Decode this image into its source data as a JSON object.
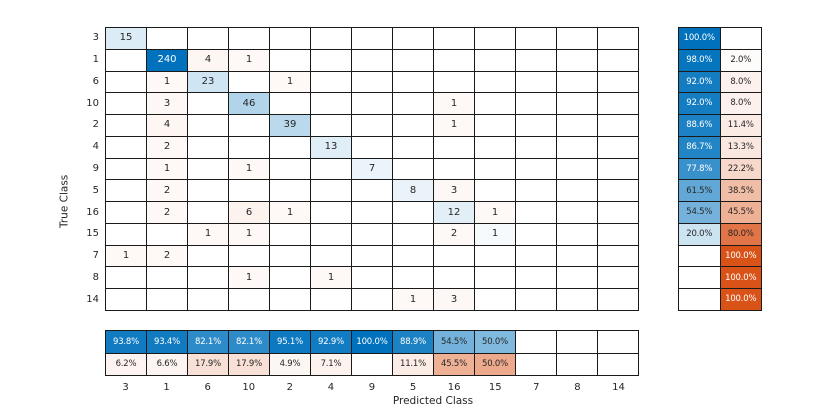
{
  "chart_data": {
    "type": "heatmap",
    "subtype": "confusion-matrix",
    "title": "",
    "xlabel": "Predicted Class",
    "ylabel": "True Class",
    "legend": "none",
    "grid": true,
    "classes": [
      "3",
      "1",
      "6",
      "10",
      "2",
      "4",
      "9",
      "5",
      "16",
      "15",
      "7",
      "8",
      "14"
    ],
    "matrix": [
      [
        15,
        0,
        0,
        0,
        0,
        0,
        0,
        0,
        0,
        0,
        0,
        0,
        0
      ],
      [
        0,
        240,
        4,
        1,
        0,
        0,
        0,
        0,
        0,
        0,
        0,
        0,
        0
      ],
      [
        0,
        1,
        23,
        0,
        1,
        0,
        0,
        0,
        0,
        0,
        0,
        0,
        0
      ],
      [
        0,
        3,
        0,
        46,
        0,
        0,
        0,
        0,
        1,
        0,
        0,
        0,
        0
      ],
      [
        0,
        4,
        0,
        0,
        39,
        0,
        0,
        0,
        1,
        0,
        0,
        0,
        0
      ],
      [
        0,
        2,
        0,
        0,
        0,
        13,
        0,
        0,
        0,
        0,
        0,
        0,
        0
      ],
      [
        0,
        1,
        0,
        1,
        0,
        0,
        7,
        0,
        0,
        0,
        0,
        0,
        0
      ],
      [
        0,
        2,
        0,
        0,
        0,
        0,
        0,
        8,
        3,
        0,
        0,
        0,
        0
      ],
      [
        0,
        2,
        0,
        6,
        1,
        0,
        0,
        0,
        12,
        1,
        0,
        0,
        0
      ],
      [
        0,
        0,
        1,
        1,
        0,
        0,
        0,
        0,
        2,
        1,
        0,
        0,
        0
      ],
      [
        1,
        2,
        0,
        0,
        0,
        0,
        0,
        0,
        0,
        0,
        0,
        0,
        0
      ],
      [
        0,
        0,
        0,
        1,
        0,
        1,
        0,
        0,
        0,
        0,
        0,
        0,
        0
      ],
      [
        0,
        0,
        0,
        0,
        0,
        0,
        0,
        1,
        3,
        0,
        0,
        0,
        0
      ]
    ],
    "row_summary": {
      "recall_pct": [
        100.0,
        98.0,
        92.0,
        92.0,
        88.6,
        86.7,
        77.8,
        61.5,
        54.5,
        20.0,
        null,
        null,
        null
      ],
      "false_negative_pct": [
        null,
        2.0,
        8.0,
        8.0,
        11.4,
        13.3,
        22.2,
        38.5,
        45.5,
        80.0,
        100.0,
        100.0,
        100.0
      ]
    },
    "col_summary": {
      "precision_pct": [
        93.8,
        93.4,
        82.1,
        82.1,
        95.1,
        92.9,
        100.0,
        88.9,
        54.5,
        50.0,
        null,
        null,
        null
      ],
      "false_discovery_pct": [
        6.2,
        6.6,
        17.9,
        17.9,
        4.9,
        7.1,
        null,
        11.1,
        45.5,
        50.0,
        null,
        null,
        null
      ]
    },
    "colors": {
      "diagonal_blue": "#0072bd",
      "off_diagonal_orange": "#d95319",
      "grid_line": "#1a1a1a",
      "text_dark": "#262626",
      "text_light": "#ffffff",
      "background": "#ffffff"
    }
  }
}
